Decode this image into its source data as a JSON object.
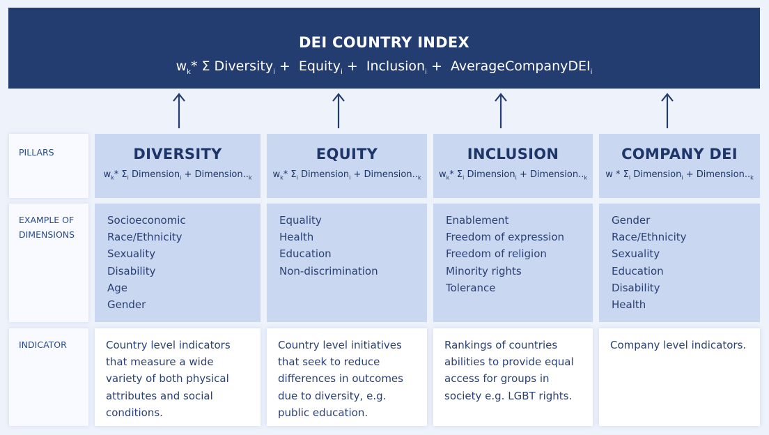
{
  "banner": {
    "title": "DEI COUNTRY INDEX",
    "formula": {
      "w": "w",
      "k": "k",
      "sum": "* Σ",
      "t1": "Diversity",
      "t2": "Equity",
      "t3": "Inclusion",
      "t4": "AverageCompanyDEI",
      "sub": "i",
      "plus": "+"
    }
  },
  "row_labels": {
    "pillars": "PILLARS",
    "dimensions_line1": "EXAMPLE OF",
    "dimensions_line2": "DIMENSIONS",
    "indicator": "INDICATOR"
  },
  "formula_parts": {
    "w": "w",
    "k": "k",
    "star_sum": "* Σ",
    "dimension": "Dimension",
    "sub_i": "i",
    "plus": "+",
    "dots": "Dimension..",
    "sub_k": "k"
  },
  "pillars": [
    {
      "name": "DIVERSITY",
      "dimensions": [
        "Socioeconomic",
        "Race/Ethnicity",
        "Sexuality",
        "Disability",
        "Age",
        "Gender"
      ],
      "indicator": "Country level indicators that measure a wide variety of both physical attributes and social conditions."
    },
    {
      "name": "EQUITY",
      "dimensions": [
        "Equality",
        "Health",
        "Education",
        "Non-discrimination"
      ],
      "indicator": "Country level initiatives that seek to reduce differences in outcomes due to diversity, e.g. public education."
    },
    {
      "name": "INCLUSION",
      "dimensions": [
        "Enablement",
        "Freedom of expression",
        "Freedom of religion",
        "Minority rights",
        "Tolerance"
      ],
      "indicator": "Rankings of countries abilities to provide equal access for groups in society e.g. LGBT rights."
    },
    {
      "name": "COMPANY DEI",
      "dimensions": [
        "Gender",
        "Race/Ethnicity",
        "Sexuality",
        "Education",
        "Disability",
        "Health"
      ],
      "indicator": "Company level indicators."
    }
  ],
  "colors": {
    "banner": "#233d70",
    "pillar_fill": "#c9d7f0",
    "indicator_fill": "#ffffff",
    "arrow": "#233d70"
  }
}
